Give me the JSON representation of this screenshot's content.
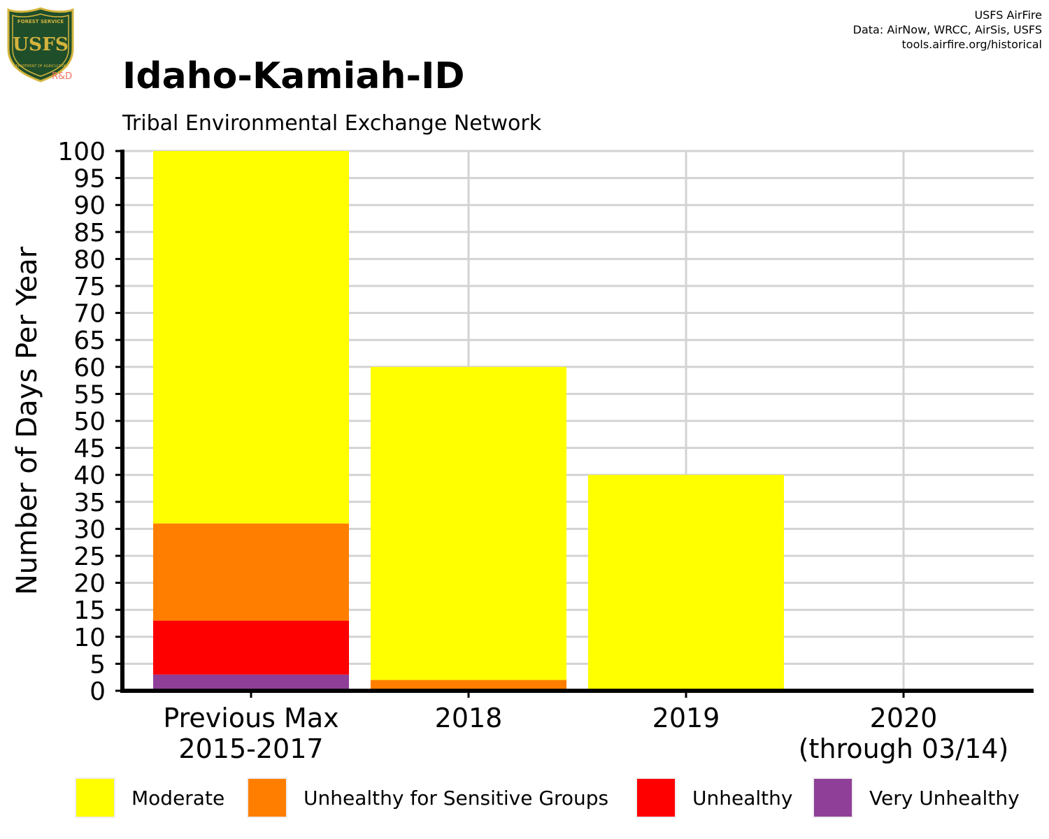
{
  "header": {
    "title": "Idaho-Kamiah-ID",
    "subtitle": "Tribal Environmental Exchange Network",
    "credits": [
      "USFS AirFire",
      "Data: AirNow, WRCC, AirSis, USFS",
      "tools.airfire.org/historical"
    ]
  },
  "logo": {
    "top_text": "FOREST SERVICE",
    "letters": "USFS",
    "bottom_text": "DEPARTMENT OF AGRICULTURE",
    "tag": "R&D"
  },
  "colors": {
    "moderate": "#FFFF00",
    "usg": "#FF7E00",
    "unhealthy": "#FF0000",
    "very_unhealthy": "#8F3F97",
    "grid": "#d3d3d3",
    "logo_green": "#1F4E2B",
    "logo_gold": "#D4B43C",
    "logo_tag": "#F07060"
  },
  "chart_data": {
    "type": "bar",
    "stacked": true,
    "title": "Idaho-Kamiah-ID",
    "subtitle": "Tribal Environmental Exchange Network",
    "ylabel": "Number of Days Per Year",
    "xlabel": "",
    "ylim": [
      0,
      100
    ],
    "yticks": [
      0,
      5,
      10,
      15,
      20,
      25,
      30,
      35,
      40,
      45,
      50,
      55,
      60,
      65,
      70,
      75,
      80,
      85,
      90,
      95,
      100
    ],
    "categories": [
      [
        "Previous Max",
        "2015-2017"
      ],
      [
        "2018"
      ],
      [
        "2019"
      ],
      [
        "2020",
        "(through 03/14)"
      ]
    ],
    "series": [
      {
        "name": "Very Unhealthy",
        "color": "#8F3F97",
        "values": [
          3,
          0,
          0,
          0
        ]
      },
      {
        "name": "Unhealthy",
        "color": "#FF0000",
        "values": [
          10,
          0,
          0,
          0
        ]
      },
      {
        "name": "Unhealthy for Sensitive Groups",
        "color": "#FF7E00",
        "values": [
          18,
          2,
          0,
          0
        ]
      },
      {
        "name": "Moderate",
        "color": "#FFFF00",
        "values": [
          69,
          58,
          40,
          0
        ]
      }
    ],
    "legend": {
      "position": "bottom",
      "order": [
        "Moderate",
        "Unhealthy for Sensitive Groups",
        "Unhealthy",
        "Very Unhealthy"
      ]
    },
    "grid": true
  }
}
